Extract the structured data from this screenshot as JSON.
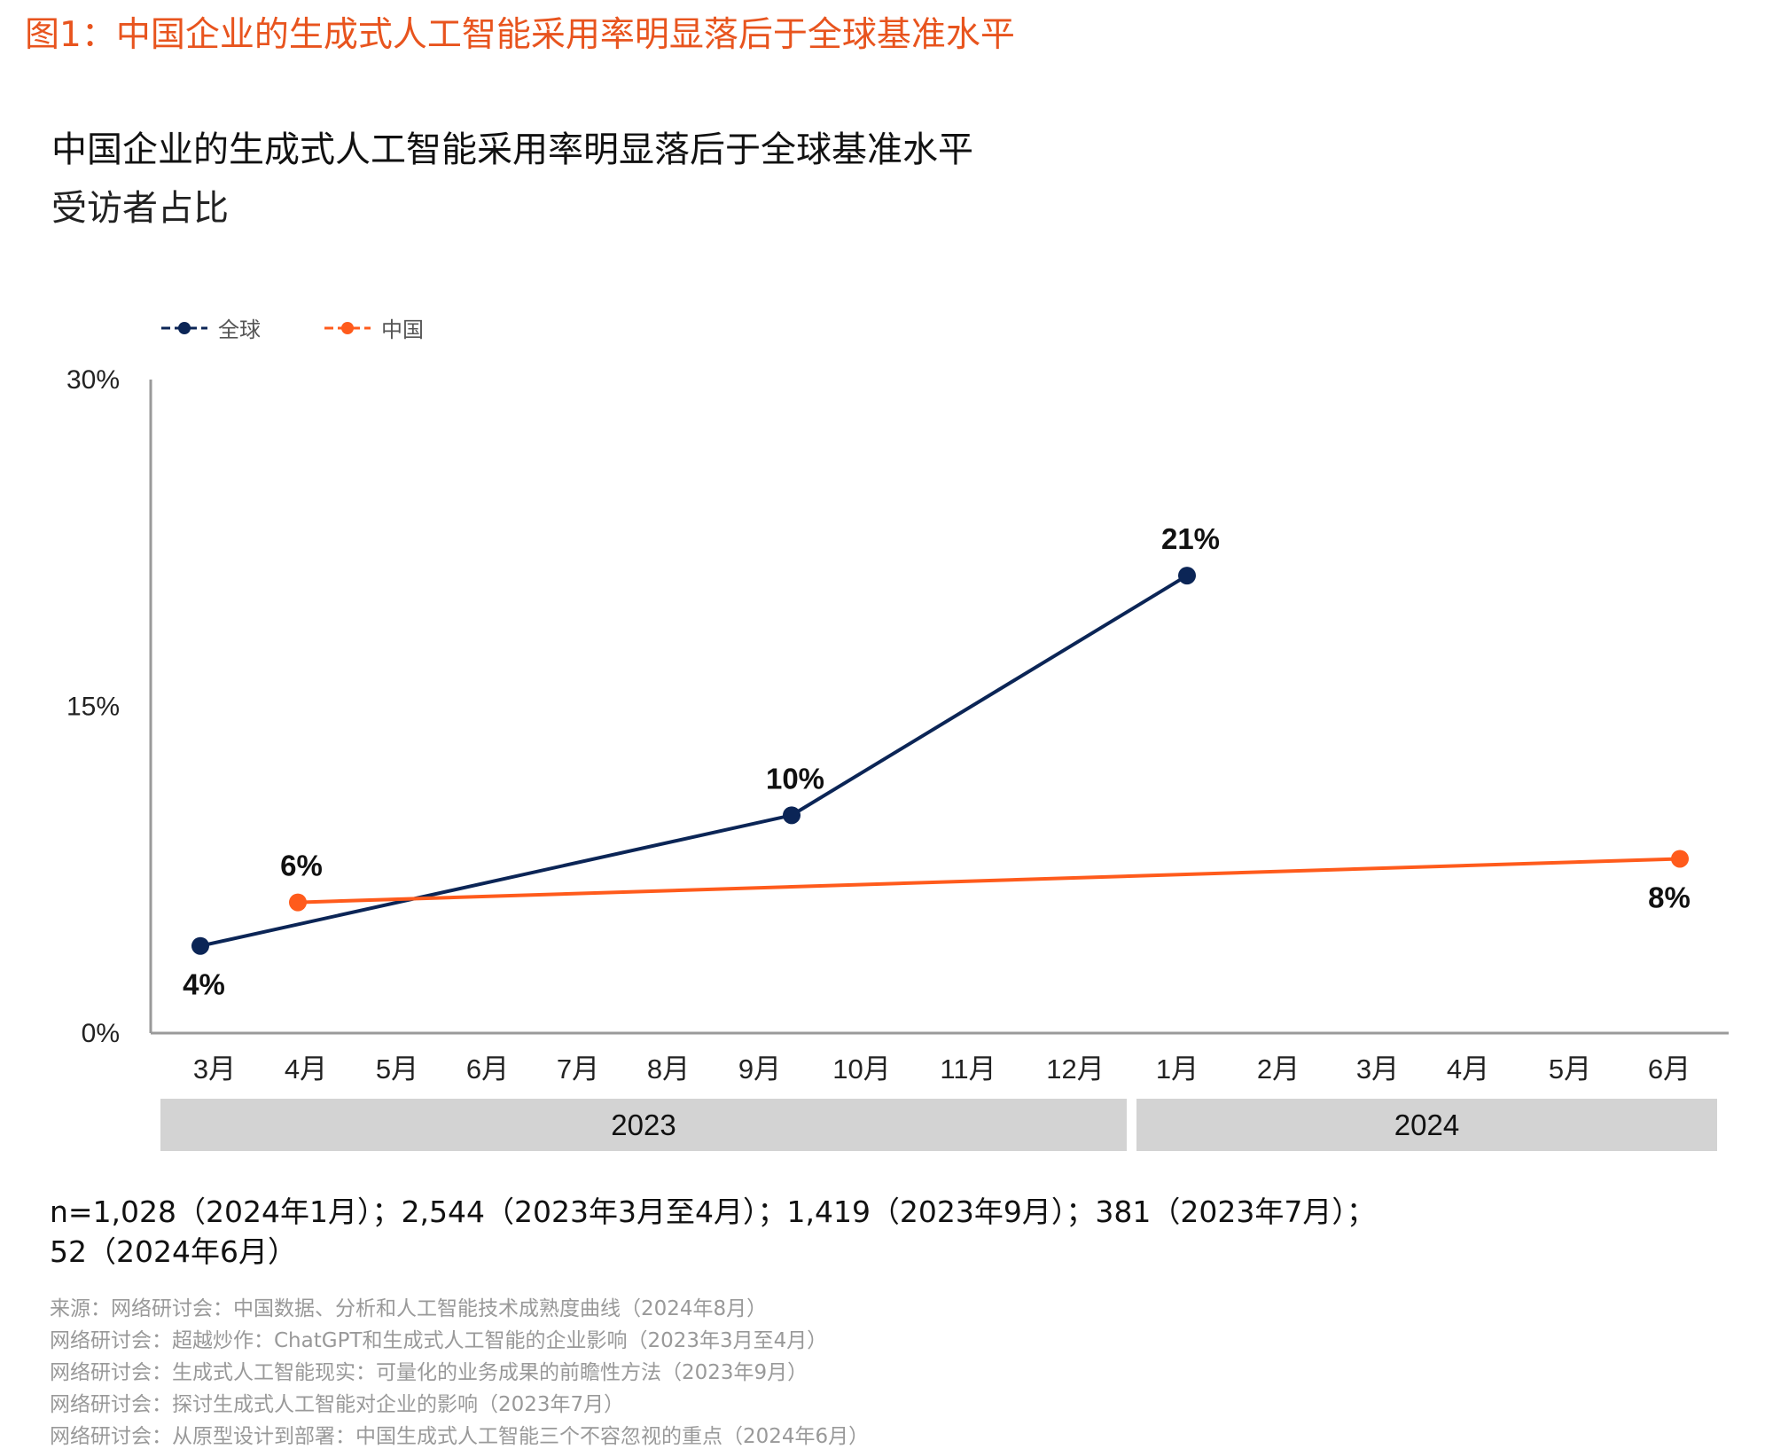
{
  "figure_title": "图1：中国企业的生成式人工智能采用率明显落后于全球基准水平",
  "colors": {
    "global": "#0b2556",
    "china": "#ff5b1c",
    "title": "#e8541e",
    "year_band": "#d3d3d3"
  },
  "chart_data": {
    "type": "line",
    "title": "中国企业的生成式人工智能采用率明显落后于全球基准水平",
    "subtitle": "受访者占比",
    "legend_position": "top-left",
    "grid": false,
    "ylim": [
      0,
      30
    ],
    "y_ticks": [
      "0%",
      "15%",
      "30%"
    ],
    "y_tick_values": [
      0,
      15,
      30
    ],
    "categories": [
      "3月",
      "4月",
      "5月",
      "6月",
      "7月",
      "8月",
      "9月",
      "10月",
      "11月",
      "12月",
      "1月",
      "2月",
      "3月",
      "4月",
      "5月",
      "6月"
    ],
    "year_groups": [
      {
        "label": "2023",
        "from": 0,
        "to": 9
      },
      {
        "label": "2024",
        "from": 10,
        "to": 15
      }
    ],
    "series": [
      {
        "name": "全球",
        "points": [
          {
            "x": 0,
            "y": 4,
            "label": "4%",
            "label_pos": "below"
          },
          {
            "x": 6,
            "y": 10,
            "label": "10%",
            "label_pos": "above"
          },
          {
            "x": 10,
            "y": 21,
            "label": "21%",
            "label_pos": "above"
          }
        ]
      },
      {
        "name": "中国",
        "points": [
          {
            "x": 1,
            "y": 6,
            "label": "6%",
            "label_pos": "above"
          },
          {
            "x": 15,
            "y": 8,
            "label": "8%",
            "label_pos": "below"
          }
        ]
      }
    ]
  },
  "notes": {
    "sample_line1": "n=1,028（2024年1月）；2,544（2023年3月至4月）；1,419（2023年9月）；381（2023年7月）；",
    "sample_line2": "52（2024年6月）",
    "sources": [
      "来源：网络研讨会：中国数据、分析和人工智能技术成熟度曲线（2024年8月）",
      "网络研讨会：超越炒作：ChatGPT和生成式人工智能的企业影响（2023年3月至4月）",
      "网络研讨会：生成式人工智能现实：可量化的业务成果的前瞻性方法（2023年9月）",
      "网络研讨会：探讨生成式人工智能对企业的影响（2023年7月）",
      "网络研讨会：从原型设计到部署：中国生成式人工智能三个不容忽视的重点（2024年6月）"
    ]
  }
}
